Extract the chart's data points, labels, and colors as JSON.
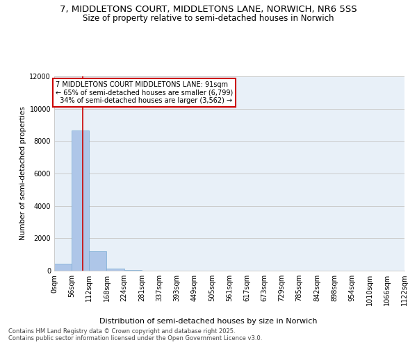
{
  "title1": "7, MIDDLETONS COURT, MIDDLETONS LANE, NORWICH, NR6 5SS",
  "title2": "Size of property relative to semi-detached houses in Norwich",
  "xlabel": "Distribution of semi-detached houses by size in Norwich",
  "ylabel": "Number of semi-detached properties",
  "bin_edges": [
    0,
    56,
    112,
    168,
    224,
    281,
    337,
    393,
    449,
    505,
    561,
    617,
    673,
    729,
    785,
    842,
    898,
    954,
    1010,
    1066,
    1122
  ],
  "bar_heights": [
    430,
    8640,
    1200,
    150,
    40,
    10,
    5,
    3,
    2,
    1,
    1,
    1,
    1,
    0,
    0,
    0,
    0,
    0,
    0,
    0
  ],
  "bar_color": "#aec6e8",
  "bar_edge_color": "#7aadd4",
  "property_size": 91,
  "property_label": "7 MIDDLETONS COURT MIDDLETONS LANE: 91sqm",
  "pct_smaller": 65,
  "n_smaller": 6799,
  "pct_larger": 34,
  "n_larger": 3562,
  "annotation_box_color": "#ffffff",
  "annotation_box_edge": "#cc0000",
  "vline_color": "#cc0000",
  "ylim": [
    0,
    12000
  ],
  "yticks": [
    0,
    2000,
    4000,
    6000,
    8000,
    10000,
    12000
  ],
  "grid_color": "#cccccc",
  "bg_color": "#e8f0f8",
  "footer": "Contains HM Land Registry data © Crown copyright and database right 2025.\nContains public sector information licensed under the Open Government Licence v3.0.",
  "title1_fontsize": 9.5,
  "title2_fontsize": 8.5,
  "xlabel_fontsize": 8,
  "ylabel_fontsize": 7.5,
  "tick_fontsize": 7,
  "annot_fontsize": 7,
  "footer_fontsize": 6
}
